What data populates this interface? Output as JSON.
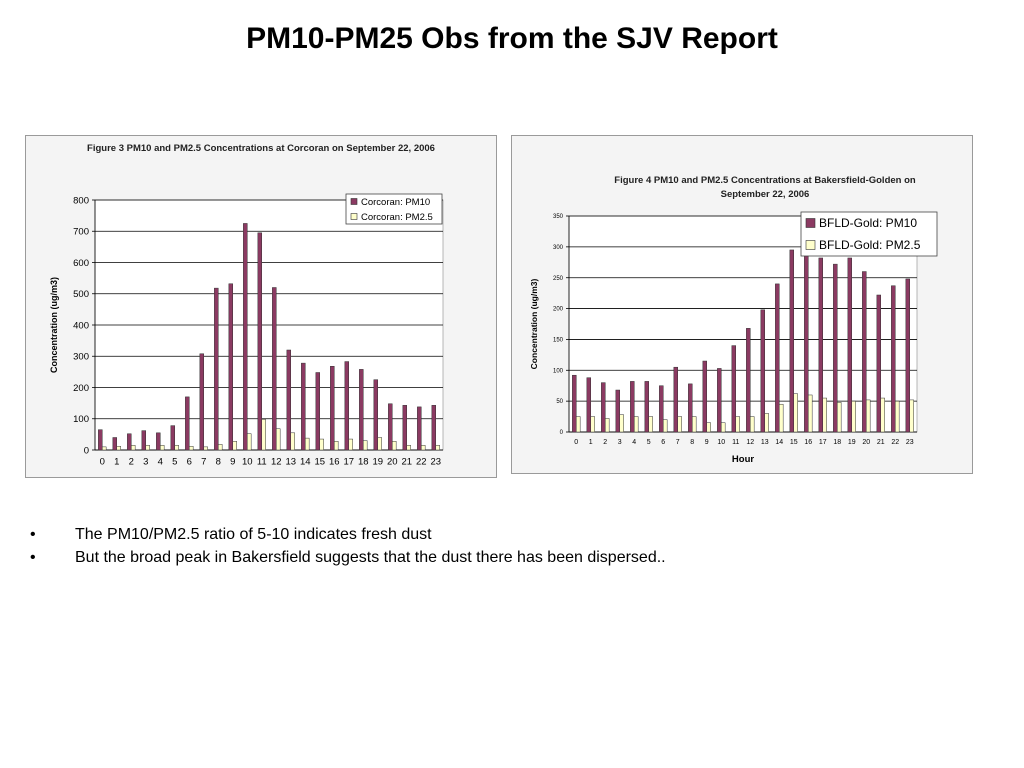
{
  "page": {
    "title": "PM10-PM25 Obs from the SJV Report"
  },
  "bullets": [
    {
      "mark": "•",
      "text": "The PM10/PM2.5 ratio of 5-10 indicates fresh dust"
    },
    {
      "mark": "•",
      "text": "But the broad peak in Bakersfield suggests that the dust there has been dispersed.."
    }
  ],
  "chart_data": [
    {
      "type": "bar",
      "title": "Figure 3 PM10 and PM2.5 Concentrations at Corcoran on September 22, 2006",
      "xlabel": "",
      "ylabel": "Concentration (ug/m3)",
      "ylim": [
        0,
        800
      ],
      "yticks": [
        0,
        100,
        200,
        300,
        400,
        500,
        600,
        700,
        800
      ],
      "grid": true,
      "legend_position": "top-right",
      "categories": [
        "0",
        "1",
        "2",
        "3",
        "4",
        "5",
        "6",
        "7",
        "8",
        "9",
        "10",
        "11",
        "12",
        "13",
        "14",
        "15",
        "16",
        "17",
        "18",
        "19",
        "20",
        "21",
        "22",
        "23"
      ],
      "series": [
        {
          "name": "Corcoran: PM10",
          "color": "#8b3a62",
          "values": [
            65,
            40,
            52,
            62,
            55,
            78,
            170,
            308,
            518,
            532,
            725,
            695,
            520,
            320,
            278,
            248,
            268,
            283,
            258,
            225,
            148,
            143,
            138,
            143
          ]
        },
        {
          "name": "Corcoran: PM2.5",
          "color": "#ffffcc",
          "values": [
            10,
            12,
            15,
            15,
            15,
            15,
            12,
            10,
            18,
            28,
            52,
            98,
            68,
            55,
            38,
            35,
            28,
            35,
            30,
            40,
            28,
            15,
            15,
            15
          ]
        }
      ]
    },
    {
      "type": "bar",
      "title": "Figure 4 PM10 and PM2.5 Concentrations at Bakersfield-Golden on September 22, 2006",
      "xlabel": "Hour",
      "ylabel": "Concentration (ug/m3)",
      "ylim": [
        0,
        350
      ],
      "yticks": [
        0,
        50,
        100,
        150,
        200,
        250,
        300,
        350
      ],
      "grid": true,
      "legend_position": "top-right",
      "categories": [
        "0",
        "1",
        "2",
        "3",
        "4",
        "5",
        "6",
        "7",
        "8",
        "9",
        "10",
        "11",
        "12",
        "13",
        "14",
        "15",
        "16",
        "17",
        "18",
        "19",
        "20",
        "21",
        "22",
        "23"
      ],
      "series": [
        {
          "name": "BFLD-Gold: PM10",
          "color": "#8b3a62",
          "values": [
            92,
            88,
            80,
            68,
            82,
            82,
            75,
            105,
            78,
            115,
            103,
            140,
            168,
            198,
            240,
            295,
            288,
            282,
            272,
            282,
            260,
            222,
            237,
            248
          ]
        },
        {
          "name": "BFLD-Gold: PM2.5",
          "color": "#ffffcc",
          "values": [
            25,
            25,
            22,
            28,
            25,
            25,
            20,
            25,
            25,
            15,
            15,
            25,
            25,
            30,
            45,
            62,
            60,
            55,
            48,
            50,
            52,
            55,
            50,
            52
          ]
        }
      ]
    }
  ]
}
